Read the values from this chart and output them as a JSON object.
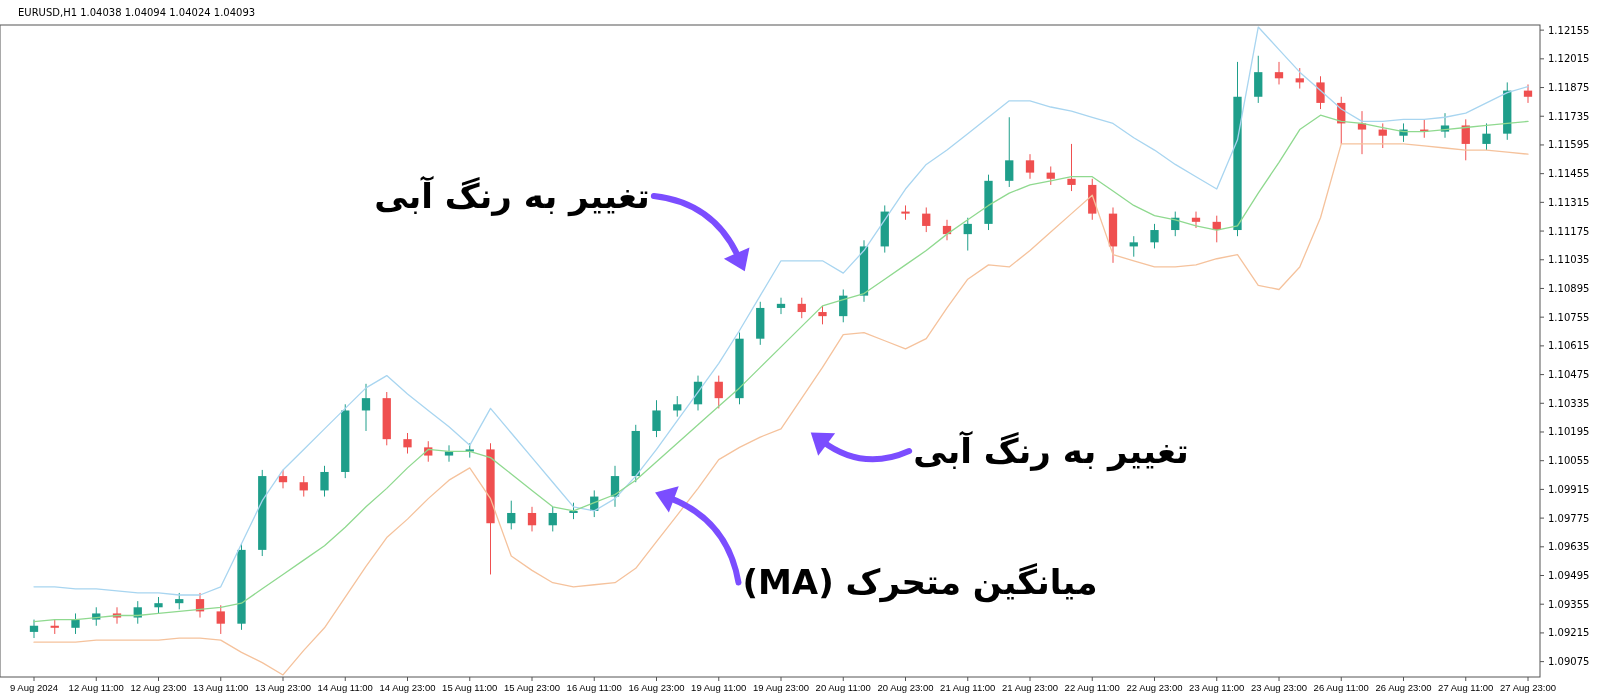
{
  "chart_data": {
    "type": "candlestick",
    "title": "EURUSD,H1  1.04038 1.04094 1.04024 1.04093",
    "categories": [
      "9 Aug 2024",
      null,
      null,
      "12 Aug 11:00",
      null,
      null,
      "12 Aug 23:00",
      null,
      null,
      "13 Aug 11:00",
      null,
      null,
      "13 Aug 23:00",
      null,
      null,
      "14 Aug 11:00",
      null,
      null,
      "14 Aug 23:00",
      null,
      null,
      "15 Aug 11:00",
      null,
      null,
      "15 Aug 23:00",
      null,
      null,
      "16 Aug 11:00",
      null,
      null,
      "16 Aug 23:00",
      null,
      null,
      "19 Aug 11:00",
      null,
      null,
      "19 Aug 23:00",
      null,
      null,
      "20 Aug 11:00",
      null,
      null,
      "20 Aug 23:00",
      null,
      null,
      "21 Aug 11:00",
      null,
      null,
      "21 Aug 23:00",
      null,
      null,
      "22 Aug 11:00",
      null,
      null,
      "22 Aug 23:00",
      null,
      null,
      "23 Aug 11:00",
      null,
      null,
      "23 Aug 23:00",
      null,
      null,
      "26 Aug 11:00",
      null,
      null,
      "26 Aug 23:00",
      null,
      null,
      "27 Aug 11:00",
      null,
      null,
      "27 Aug 23:00"
    ],
    "ohlc": [
      [
        1.0922,
        1.0928,
        1.0919,
        1.0925
      ],
      [
        1.0925,
        1.0928,
        1.0921,
        1.0924
      ],
      [
        1.0924,
        1.0931,
        1.0921,
        1.0928
      ],
      [
        1.0928,
        1.0934,
        1.0925,
        1.0931
      ],
      [
        1.0931,
        1.0934,
        1.0926,
        1.0929
      ],
      [
        1.0929,
        1.0937,
        1.0926,
        1.0934
      ],
      [
        1.0934,
        1.0939,
        1.0931,
        1.0936
      ],
      [
        1.0936,
        1.0941,
        1.0933,
        1.0938
      ],
      [
        1.0938,
        1.0941,
        1.0929,
        1.0932
      ],
      [
        1.0932,
        1.0935,
        1.0921,
        1.0926
      ],
      [
        1.0926,
        1.0965,
        1.0923,
        1.0962
      ],
      [
        1.0962,
        1.1001,
        1.0959,
        1.0998
      ],
      [
        1.0998,
        1.1001,
        1.0992,
        1.0995
      ],
      [
        1.0995,
        1.0998,
        1.0988,
        1.0991
      ],
      [
        1.0991,
        1.1003,
        1.0988,
        1.1
      ],
      [
        1.1,
        1.1033,
        1.0997,
        1.103
      ],
      [
        1.103,
        1.1043,
        1.102,
        1.1036
      ],
      [
        1.1036,
        1.1039,
        1.1013,
        1.1016
      ],
      [
        1.1016,
        1.1019,
        1.1009,
        1.1012
      ],
      [
        1.1012,
        1.1015,
        1.1005,
        1.1008
      ],
      [
        1.1008,
        1.1013,
        1.1005,
        1.101
      ],
      [
        1.101,
        1.1014,
        1.1007,
        1.1011
      ],
      [
        1.1011,
        1.1014,
        1.095,
        1.0975
      ],
      [
        1.0975,
        1.0986,
        1.0972,
        1.098
      ],
      [
        1.098,
        1.0983,
        1.0971,
        1.0974
      ],
      [
        1.0974,
        1.0983,
        1.0971,
        1.098
      ],
      [
        1.098,
        1.0985,
        1.0977,
        1.0981
      ],
      [
        1.0981,
        1.0991,
        1.0978,
        1.0988
      ],
      [
        1.0988,
        1.1003,
        1.0983,
        1.0998
      ],
      [
        1.0998,
        1.1023,
        1.0995,
        1.102
      ],
      [
        1.102,
        1.1035,
        1.1017,
        1.103
      ],
      [
        1.103,
        1.1037,
        1.1027,
        1.1033
      ],
      [
        1.1033,
        1.1047,
        1.103,
        1.1044
      ],
      [
        1.1044,
        1.1047,
        1.1031,
        1.1036
      ],
      [
        1.1036,
        1.1068,
        1.1033,
        1.1065
      ],
      [
        1.1065,
        1.1083,
        1.1062,
        1.108
      ],
      [
        1.108,
        1.1085,
        1.1077,
        1.1082
      ],
      [
        1.1082,
        1.1085,
        1.1075,
        1.1078
      ],
      [
        1.1078,
        1.1081,
        1.1072,
        1.1076
      ],
      [
        1.1076,
        1.1089,
        1.1073,
        1.1086
      ],
      [
        1.1086,
        1.1113,
        1.1083,
        1.111
      ],
      [
        1.111,
        1.113,
        1.1107,
        1.1127
      ],
      [
        1.1127,
        1.113,
        1.1123,
        1.1126
      ],
      [
        1.1126,
        1.1129,
        1.1117,
        1.112
      ],
      [
        1.112,
        1.1123,
        1.1113,
        1.1116
      ],
      [
        1.1116,
        1.1124,
        1.1108,
        1.1121
      ],
      [
        1.1121,
        1.1145,
        1.1118,
        1.1142
      ],
      [
        1.1142,
        1.1173,
        1.1139,
        1.1152
      ],
      [
        1.1152,
        1.1155,
        1.1143,
        1.1146
      ],
      [
        1.1146,
        1.1149,
        1.114,
        1.1143
      ],
      [
        1.1143,
        1.116,
        1.1137,
        1.114
      ],
      [
        1.114,
        1.1143,
        1.1123,
        1.1126
      ],
      [
        1.1126,
        1.1129,
        1.1102,
        1.111
      ],
      [
        1.111,
        1.1115,
        1.1105,
        1.1112
      ],
      [
        1.1112,
        1.1121,
        1.1109,
        1.1118
      ],
      [
        1.1118,
        1.1127,
        1.1115,
        1.1124
      ],
      [
        1.1124,
        1.1127,
        1.1119,
        1.1122
      ],
      [
        1.1122,
        1.1125,
        1.1112,
        1.1118
      ],
      [
        1.1118,
        1.12,
        1.1115,
        1.1183
      ],
      [
        1.1183,
        1.1203,
        1.118,
        1.1195
      ],
      [
        1.1195,
        1.12,
        1.1189,
        1.1192
      ],
      [
        1.1192,
        1.1197,
        1.1187,
        1.119
      ],
      [
        1.119,
        1.1193,
        1.1177,
        1.118
      ],
      [
        1.118,
        1.1183,
        1.116,
        1.117
      ],
      [
        1.117,
        1.1176,
        1.1155,
        1.1167
      ],
      [
        1.1167,
        1.117,
        1.1158,
        1.1164
      ],
      [
        1.1164,
        1.117,
        1.1161,
        1.1167
      ],
      [
        1.1167,
        1.1172,
        1.1163,
        1.1166
      ],
      [
        1.1166,
        1.1175,
        1.1163,
        1.1169
      ],
      [
        1.1169,
        1.1172,
        1.1152,
        1.116
      ],
      [
        1.116,
        1.117,
        1.1157,
        1.1165
      ],
      [
        1.1165,
        1.119,
        1.1162,
        1.1186
      ],
      [
        1.1186,
        1.1189,
        1.118,
        1.1183
      ]
    ],
    "series": [
      {
        "type": "line",
        "color": "#a8d5f0",
        "values": [
          1.0944,
          1.0944,
          1.0943,
          1.0943,
          1.0942,
          1.0941,
          1.0941,
          1.094,
          1.094,
          1.0944,
          1.0965,
          1.0986,
          1.1001,
          1.1011,
          1.1021,
          1.1031,
          1.1041,
          1.1047,
          1.1038,
          1.103,
          1.1022,
          1.1013,
          1.1031,
          1.1019,
          1.1007,
          1.0995,
          1.0983,
          1.0981,
          1.0987,
          1.0998,
          1.1011,
          1.1025,
          1.1039,
          1.1053,
          1.1069,
          1.1086,
          1.1103,
          1.1103,
          1.1103,
          1.1097,
          1.1108,
          1.1123,
          1.1138,
          1.115,
          1.1157,
          1.1165,
          1.1173,
          1.1181,
          1.1181,
          1.1178,
          1.1176,
          1.1173,
          1.117,
          1.1163,
          1.1157,
          1.115,
          1.1144,
          1.1138,
          1.1162,
          1.1217,
          1.1206,
          1.1195,
          1.1186,
          1.1177,
          1.1171,
          1.1171,
          1.1172,
          1.1172,
          1.1173,
          1.1175,
          1.118,
          1.1185,
          1.1188
        ]
      },
      {
        "type": "line",
        "color": "#8fd98f",
        "values": [
          1.0927,
          1.0928,
          1.0928,
          1.0929,
          1.093,
          1.093,
          1.0931,
          1.0932,
          1.0933,
          1.0934,
          1.0936,
          1.0943,
          1.095,
          1.0957,
          1.0964,
          1.0973,
          1.0983,
          1.0992,
          1.1002,
          1.1011,
          1.101,
          1.101,
          1.1007,
          1.0999,
          1.0991,
          1.0983,
          1.0981,
          1.0985,
          1.0989,
          1.0996,
          1.1005,
          1.1014,
          1.1023,
          1.1032,
          1.1041,
          1.1051,
          1.1061,
          1.1071,
          1.1081,
          1.1084,
          1.1087,
          1.1094,
          1.1101,
          1.1108,
          1.1116,
          1.1123,
          1.113,
          1.1136,
          1.114,
          1.1142,
          1.1144,
          1.1144,
          1.1137,
          1.113,
          1.1125,
          1.1123,
          1.112,
          1.1118,
          1.112,
          1.1136,
          1.1151,
          1.1167,
          1.1174,
          1.1171,
          1.117,
          1.1168,
          1.1166,
          1.1166,
          1.1167,
          1.1168,
          1.1169,
          1.117,
          1.1171
        ]
      },
      {
        "type": "line",
        "color": "#f5c29c",
        "values": [
          1.0917,
          1.0917,
          1.0917,
          1.0918,
          1.0918,
          1.0918,
          1.0918,
          1.0919,
          1.0919,
          1.0918,
          1.0912,
          1.0907,
          1.0901,
          1.0913,
          1.0924,
          1.0939,
          1.0954,
          1.0968,
          1.0977,
          1.0987,
          1.0996,
          1.1002,
          1.0987,
          1.0959,
          1.0952,
          1.0946,
          1.0944,
          1.0945,
          1.0946,
          1.0953,
          1.0966,
          1.0979,
          1.0992,
          1.1006,
          1.1012,
          1.1017,
          1.1021,
          1.1036,
          1.1051,
          1.1067,
          1.1068,
          1.1064,
          1.106,
          1.1065,
          1.108,
          1.1094,
          1.1101,
          1.11,
          1.1108,
          1.1117,
          1.1126,
          1.1135,
          1.1106,
          1.1103,
          1.11,
          1.11,
          1.1101,
          1.1104,
          1.1106,
          1.1091,
          1.1089,
          1.11,
          1.1124,
          1.116,
          1.116,
          1.116,
          1.116,
          1.1159,
          1.1158,
          1.1157,
          1.1157,
          1.1156,
          1.1155
        ]
      }
    ],
    "ylim": [
      1.09,
      1.1218
    ],
    "yticks": [
      1.09075,
      1.09215,
      1.09355,
      1.09495,
      1.09635,
      1.09775,
      1.09915,
      1.10055,
      1.10195,
      1.10335,
      1.10475,
      1.10615,
      1.10755,
      1.10895,
      1.11035,
      1.11175,
      1.11315,
      1.11455,
      1.11595,
      1.11735,
      1.11875,
      1.12015,
      1.12155
    ],
    "annotations": [
      "تغییر به رنگ آبی",
      "تغییر به رنگ آبی",
      "میانگین متحرک (MA)"
    ]
  }
}
